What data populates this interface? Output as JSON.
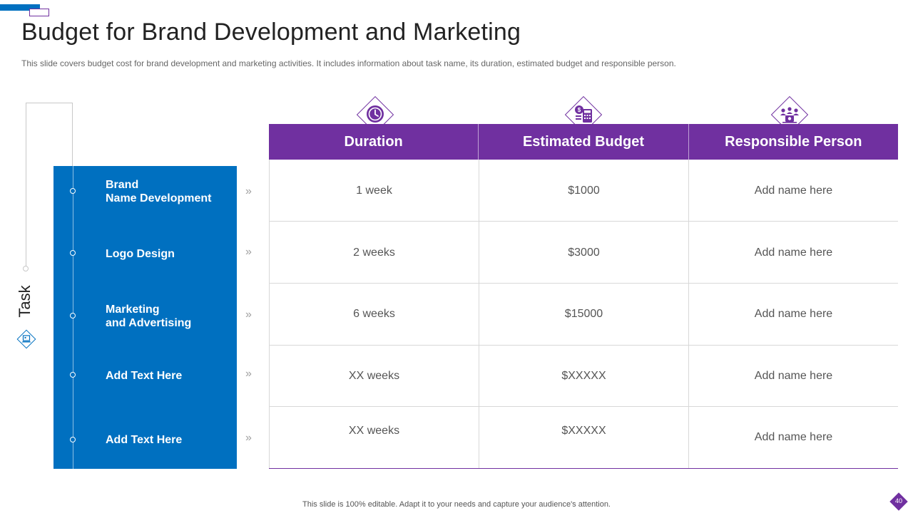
{
  "slide": {
    "title": "Budget for Brand Development and Marketing",
    "subtitle": "This slide covers budget cost for brand development  and marketing activities. It includes information  about task name, its duration, estimated budget and responsible person.",
    "footer": "This slide is 100% editable. Adapt it to your needs and capture your audience's attention.",
    "page_number": "40"
  },
  "task_panel": {
    "label": "Task",
    "icon": "laptop-icon",
    "items": [
      {
        "line1": "Brand",
        "line2": "Name Development"
      },
      {
        "line1": "Logo Design",
        "line2": ""
      },
      {
        "line1": "Marketing",
        "line2": "and Advertising"
      },
      {
        "line1": "Add  Text Here",
        "line2": ""
      },
      {
        "line1": "Add  Text Here",
        "line2": ""
      }
    ]
  },
  "table": {
    "headers": [
      {
        "label": "Duration",
        "icon": "clock-icon"
      },
      {
        "label": "Estimated Budget",
        "icon": "budget-calculator-icon"
      },
      {
        "label": "Responsible Person",
        "icon": "team-icon"
      }
    ],
    "rows": [
      {
        "duration": "1 week",
        "budget": "$1000",
        "person": "Add name here"
      },
      {
        "duration": "2 weeks",
        "budget": "$3000",
        "person": "Add name here"
      },
      {
        "duration": "6 weeks",
        "budget": "$15000",
        "person": "Add name here"
      },
      {
        "duration": "XX weeks",
        "budget": "$XXXXX",
        "person": "Add name here"
      },
      {
        "duration": "XX weeks",
        "budget": "$XXXXX",
        "person": "Add name here"
      }
    ]
  },
  "colors": {
    "primary_blue": "#0070c0",
    "accent_purple": "#7030a0"
  }
}
